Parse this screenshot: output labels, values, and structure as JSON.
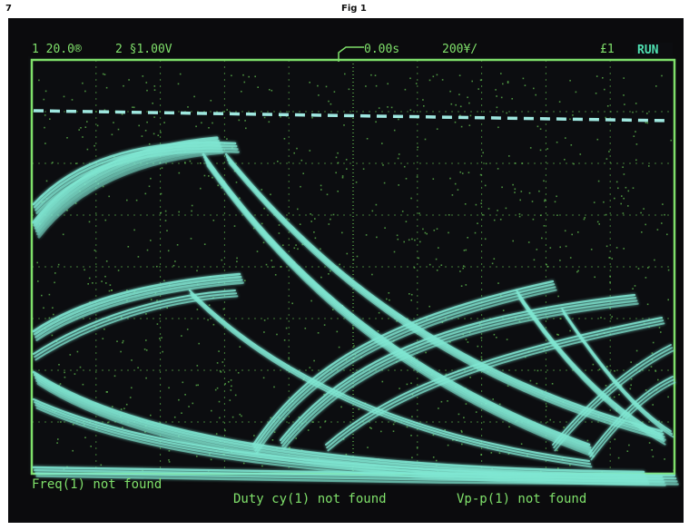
{
  "page_number": "7",
  "figure_title": "Fig 1",
  "scope": {
    "ch1_scale": "1 20.0®",
    "ch2_scale": "2 §1.00V",
    "time_offset": "0.00s",
    "time_scale": "200¥/",
    "trigger": "£1",
    "run_state": "RUN",
    "measurements": [
      "Freq(1) not found",
      "Duty cy(1) not found",
      "Vp-p(1) not found"
    ]
  },
  "colors": {
    "screen": "#0b0b0d",
    "graticule": "#6fd85a",
    "trace": "#7fe6d2",
    "run_badge": "#4fe0b0"
  }
}
